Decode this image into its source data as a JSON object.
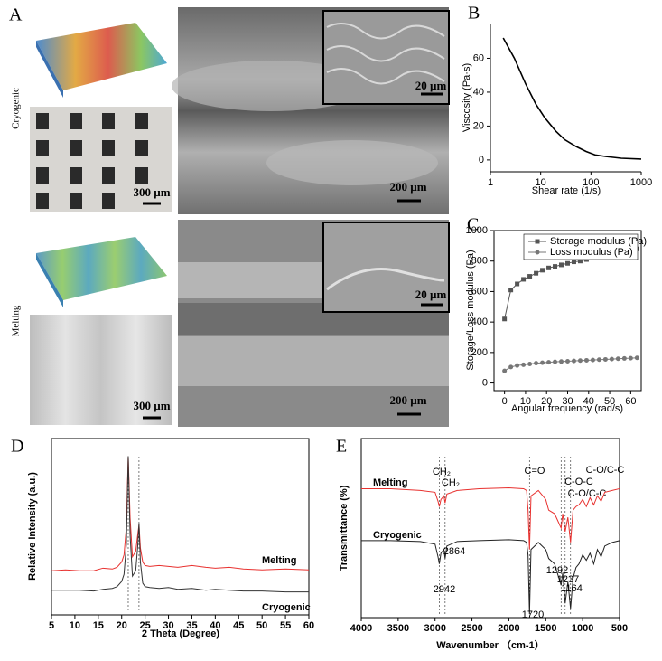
{
  "panel_a": {
    "label": "A",
    "rows": [
      {
        "name": "Cryogenic",
        "photo_scale": "300 µm",
        "sem_scale": "200 µm",
        "inset_scale": "20 µm"
      },
      {
        "name": "Melting",
        "photo_scale": "300 µm",
        "sem_scale": "200 µm",
        "inset_scale": "20 µm"
      }
    ]
  },
  "chart_data": [
    {
      "panel": "B",
      "type": "line",
      "x_label": "Shear rate (1/s)",
      "y_label": "Viscosity (Pa·s)",
      "log_x": true,
      "xlim": [
        1,
        1000
      ],
      "xticks": [
        1,
        10,
        100,
        1000
      ],
      "ylim": [
        -7,
        80
      ],
      "yticks": [
        0,
        20,
        40,
        60
      ],
      "series": [
        {
          "name": null,
          "color": "#000000",
          "x": [
            1.8,
            3,
            5,
            8,
            12,
            20,
            30,
            50,
            80,
            120,
            200,
            400,
            1000
          ],
          "values": [
            72,
            60,
            45,
            33,
            25,
            17,
            12,
            8,
            5,
            3,
            2,
            1,
            0.5
          ]
        }
      ]
    },
    {
      "panel": "C",
      "type": "line",
      "x_label": "Angular frequency (rad/s)",
      "y_label": "Storage/Loss modulus (Pa)",
      "xlim": [
        -5,
        65
      ],
      "xticks": [
        0,
        10,
        20,
        30,
        40,
        50,
        60
      ],
      "ylim": [
        -50,
        1000
      ],
      "yticks": [
        0,
        200,
        400,
        600,
        800,
        1000
      ],
      "legend": "upper right",
      "series": [
        {
          "name": "Storage modulus (Pa)",
          "color": "#555555",
          "marker": "square",
          "x": [
            0,
            3,
            6,
            9,
            12,
            15,
            18,
            21,
            24,
            27,
            30,
            33,
            36,
            39,
            42,
            45,
            48,
            51,
            54,
            57,
            60,
            63
          ],
          "values": [
            420,
            610,
            650,
            680,
            700,
            720,
            740,
            755,
            765,
            775,
            785,
            795,
            800,
            810,
            820,
            830,
            840,
            850,
            860,
            865,
            875,
            880
          ]
        },
        {
          "name": "Loss modulus (Pa)",
          "color": "#777777",
          "marker": "circle",
          "x": [
            0,
            3,
            6,
            9,
            12,
            15,
            18,
            21,
            24,
            27,
            30,
            33,
            36,
            39,
            42,
            45,
            48,
            51,
            54,
            57,
            60,
            63
          ],
          "values": [
            80,
            105,
            115,
            120,
            125,
            130,
            133,
            136,
            139,
            141,
            143,
            145,
            147,
            149,
            151,
            153,
            155,
            157,
            159,
            161,
            163,
            165
          ]
        }
      ]
    },
    {
      "panel": "D",
      "type": "line",
      "x_label": "2 Theta (Degree)",
      "y_label": "Relative Intensity (a.u.)",
      "xlim": [
        5,
        60
      ],
      "xticks": [
        5,
        10,
        15,
        20,
        25,
        30,
        35,
        40,
        45,
        50,
        55,
        60
      ],
      "ylim": [
        0,
        100
      ],
      "vlines": [
        21.4,
        23.7
      ],
      "series": [
        {
          "name": "Melting",
          "color": "#e8312f",
          "x": [
            5,
            8,
            11,
            14,
            16,
            18,
            19,
            20,
            20.5,
            21,
            21.4,
            21.8,
            22.3,
            23,
            23.4,
            23.7,
            24,
            24.5,
            25,
            26,
            28,
            30,
            32,
            35,
            38,
            40,
            43,
            46,
            50,
            55,
            60
          ],
          "values": [
            25,
            25.5,
            25,
            25,
            26.5,
            26,
            27,
            30,
            34,
            50,
            90,
            55,
            33,
            36,
            45,
            51,
            38,
            30,
            28,
            27.5,
            28,
            27.5,
            27,
            28,
            27,
            26.5,
            27,
            26,
            25.5,
            26,
            25.5
          ]
        },
        {
          "name": "Cryogenic",
          "color": "#333333",
          "x": [
            5,
            8,
            11,
            14,
            16,
            18,
            19,
            20,
            20.5,
            21,
            21.4,
            21.8,
            22.3,
            23,
            23.4,
            23.7,
            24,
            24.5,
            25,
            26,
            28,
            30,
            32,
            35,
            38,
            40,
            43,
            46,
            50,
            55,
            60
          ],
          "values": [
            14,
            14,
            14,
            13.5,
            14.5,
            15,
            16,
            19,
            23,
            40,
            90,
            45,
            22,
            25,
            38,
            52,
            30,
            18,
            16,
            15.5,
            15,
            15.5,
            14.5,
            15,
            14,
            14.5,
            14,
            13.5,
            13.5,
            13,
            13
          ]
        }
      ]
    },
    {
      "panel": "E",
      "type": "line",
      "x_label": "Wavenumber （cm-1）",
      "y_label": "Transmittance (%)",
      "xlim": [
        4000,
        500
      ],
      "xticks": [
        4000,
        3500,
        3000,
        2500,
        2000,
        1500,
        1000,
        500
      ],
      "ylim": [
        0,
        100
      ],
      "vlines": [
        2942,
        2864,
        1720,
        1292,
        1237,
        1164
      ],
      "annotations": [
        "CH₂",
        "CH₂",
        "C=O",
        "C-O/C-C",
        "C-O-C",
        "C-O/C-C",
        "2864",
        "2942",
        "1720",
        "1292",
        "1237",
        "1164"
      ],
      "series": [
        {
          "name": "Melting",
          "color": "#e8312f",
          "x": [
            4000,
            3600,
            3200,
            3000,
            2960,
            2942,
            2920,
            2880,
            2864,
            2840,
            2700,
            2400,
            2000,
            1800,
            1760,
            1740,
            1720,
            1700,
            1600,
            1500,
            1460,
            1380,
            1292,
            1270,
            1237,
            1200,
            1164,
            1130,
            1090,
            1050,
            1000,
            950,
            900,
            850,
            800,
            750,
            700,
            600,
            500
          ],
          "values": [
            72,
            72,
            71,
            70,
            65,
            62,
            66,
            68,
            64,
            69,
            71,
            72,
            72.5,
            72,
            71,
            60,
            38,
            68,
            71,
            66,
            60,
            58,
            50,
            58,
            48,
            56,
            42,
            60,
            62,
            63,
            66,
            62,
            67,
            63,
            68,
            65,
            70,
            71,
            72
          ]
        },
        {
          "name": "Cryogenic",
          "color": "#222222",
          "x": [
            4000,
            3600,
            3200,
            3000,
            2960,
            2942,
            2920,
            2880,
            2864,
            2840,
            2700,
            2400,
            2000,
            1800,
            1760,
            1740,
            1720,
            1700,
            1600,
            1500,
            1460,
            1380,
            1292,
            1270,
            1237,
            1200,
            1164,
            1130,
            1090,
            1050,
            1000,
            950,
            900,
            850,
            800,
            750,
            700,
            600,
            500
          ],
          "values": [
            43,
            43,
            42.5,
            41,
            34,
            30,
            36,
            38,
            33,
            40,
            42.5,
            43,
            43.5,
            43,
            42,
            35,
            2,
            38,
            42,
            38,
            33,
            30,
            18,
            25,
            8,
            20,
            5,
            22,
            28,
            30,
            35,
            32,
            36,
            30,
            38,
            34,
            40,
            42,
            43
          ]
        }
      ]
    }
  ]
}
